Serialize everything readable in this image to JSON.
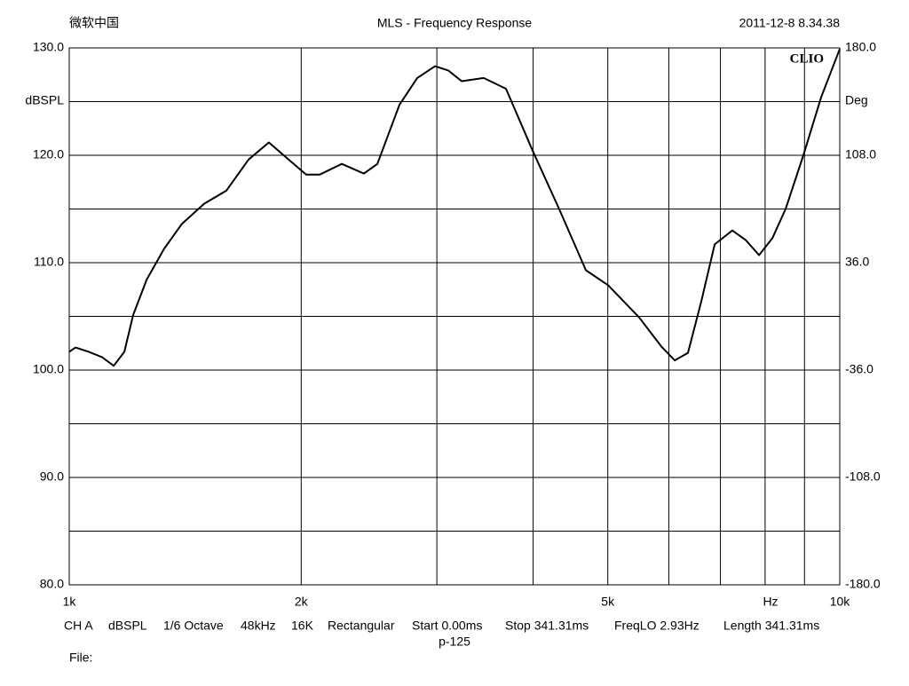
{
  "chart_data": {
    "type": "line",
    "header_left": "微软中国",
    "title": "MLS - Frequency Response",
    "timestamp": "2011-12-8 8.34.38",
    "brand": "CLIO",
    "ylabel": "dBSPL",
    "y2label": "Deg",
    "xlabel": "Hz",
    "xscale": "log",
    "grid": true,
    "xlim": [
      1000,
      10000
    ],
    "xticks": [
      {
        "value": 1000,
        "label": "1k"
      },
      {
        "value": 2000,
        "label": "2k"
      },
      {
        "value": 5000,
        "label": "5k"
      },
      {
        "value": 10000,
        "label": "10k"
      }
    ],
    "xminor": [
      3000,
      4000,
      6000,
      7000,
      8000,
      9000
    ],
    "ylim": [
      80,
      130
    ],
    "yticks": [
      {
        "value": 130,
        "label": "130.0"
      },
      {
        "value": 120,
        "label": "120.0"
      },
      {
        "value": 110,
        "label": "110.0"
      },
      {
        "value": 100,
        "label": "100.0"
      },
      {
        "value": 90,
        "label": "90.0"
      },
      {
        "value": 80,
        "label": "80.0"
      }
    ],
    "yminor": [
      125,
      115,
      105,
      95,
      85
    ],
    "y2lim": [
      -180,
      180
    ],
    "y2ticks": [
      {
        "value": 180,
        "label": "180.0"
      },
      {
        "value": 108,
        "label": "108.0"
      },
      {
        "value": 36,
        "label": "36.0"
      },
      {
        "value": -36,
        "label": "-36.0"
      },
      {
        "value": -108,
        "label": "-108.0"
      },
      {
        "value": -180,
        "label": "-180.0"
      }
    ],
    "series": [
      {
        "name": "CH A",
        "color": "#000000",
        "x": [
          1000,
          1019,
          1060,
          1103,
          1142,
          1179,
          1210,
          1260,
          1328,
          1400,
          1497,
          1599,
          1709,
          1816,
          1926,
          2030,
          2113,
          2258,
          2412,
          2511,
          2683,
          2829,
          2984,
          3104,
          3231,
          3451,
          3688,
          3996,
          4324,
          4683,
          5005,
          5491,
          5867,
          6107,
          6353,
          6612,
          6882,
          7255,
          7550,
          7858,
          8178,
          8506,
          8970,
          9458,
          10000
        ],
        "values": [
          101.7,
          102.1,
          101.7,
          101.2,
          100.4,
          101.7,
          105.1,
          108.4,
          111.3,
          113.6,
          115.5,
          116.7,
          119.6,
          121.2,
          119.6,
          118.2,
          118.2,
          119.2,
          118.3,
          119.2,
          124.7,
          127.2,
          128.3,
          127.9,
          126.9,
          127.2,
          126.2,
          120.4,
          115.0,
          109.3,
          107.9,
          104.9,
          102.2,
          100.9,
          101.6,
          106.4,
          111.7,
          113.0,
          112.1,
          110.7,
          112.3,
          115.0,
          120.0,
          125.4,
          129.9
        ]
      }
    ],
    "footer": [
      "CH A",
      "dBSPL",
      "1/6 Octave",
      "48kHz",
      "16K",
      "Rectangular",
      "Start 0.00ms",
      "Stop 341.31ms",
      "FreqLO 2.93Hz",
      "Length 341.31ms"
    ],
    "footer_sub": "p-125",
    "file_label": "File:"
  }
}
